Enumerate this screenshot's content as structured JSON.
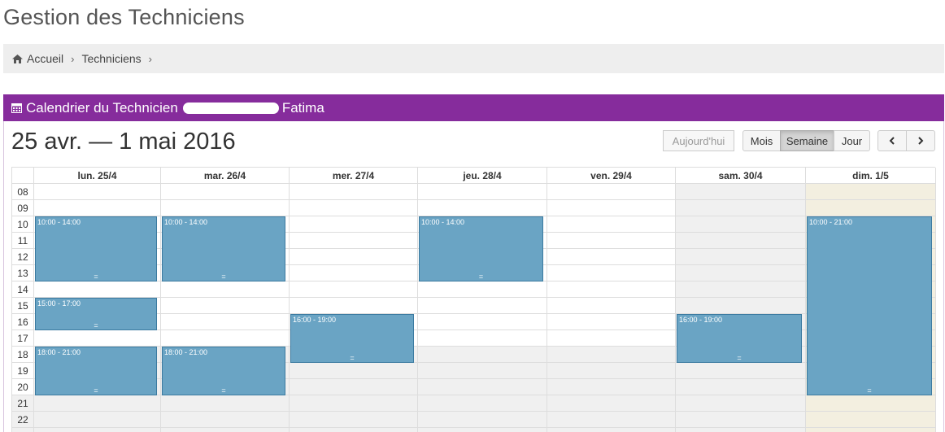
{
  "page": {
    "title": "Gestion des Techniciens"
  },
  "breadcrumb": {
    "items": [
      "Accueil",
      "Techniciens"
    ]
  },
  "panel": {
    "title_prefix": "Calendrier du Technicien",
    "title_suffix": "Fatima"
  },
  "calendar": {
    "range_title": "25 avr. — 1 mai 2016",
    "today_label": "Aujourd'hui",
    "views": [
      "Mois",
      "Semaine",
      "Jour"
    ],
    "active_view": "Semaine",
    "prev_icon": "chevron-left-icon",
    "next_icon": "chevron-right-icon",
    "days": [
      "lun. 25/4",
      "mar. 26/4",
      "mer. 27/4",
      "jeu. 28/4",
      "ven. 29/4",
      "sam. 30/4",
      "dim. 1/5"
    ],
    "hours": [
      "08",
      "09",
      "10",
      "11",
      "12",
      "13",
      "14",
      "15",
      "16",
      "17",
      "18",
      "19",
      "20",
      "21",
      "22"
    ],
    "events": [
      {
        "day": 0,
        "start": 10,
        "end": 14,
        "label": "10:00 - 14:00"
      },
      {
        "day": 0,
        "start": 15,
        "end": 17,
        "label": "15:00 - 17:00"
      },
      {
        "day": 0,
        "start": 18,
        "end": 21,
        "label": "18:00 - 21:00"
      },
      {
        "day": 1,
        "start": 10,
        "end": 14,
        "label": "10:00 - 14:00"
      },
      {
        "day": 1,
        "start": 18,
        "end": 21,
        "label": "18:00 - 21:00"
      },
      {
        "day": 2,
        "start": 16,
        "end": 19,
        "label": "16:00 - 19:00"
      },
      {
        "day": 3,
        "start": 10,
        "end": 14,
        "label": "10:00 - 14:00"
      },
      {
        "day": 5,
        "start": 16,
        "end": 19,
        "label": "16:00 - 19:00"
      },
      {
        "day": 6,
        "start": 10,
        "end": 21,
        "label": "10:00 - 21:00"
      }
    ],
    "event_handle": "=",
    "colors": {
      "event": "#6aa4c4",
      "today": "#f3efe0",
      "weekend_past": "#f0f0f0",
      "header": "#862c9c"
    }
  }
}
